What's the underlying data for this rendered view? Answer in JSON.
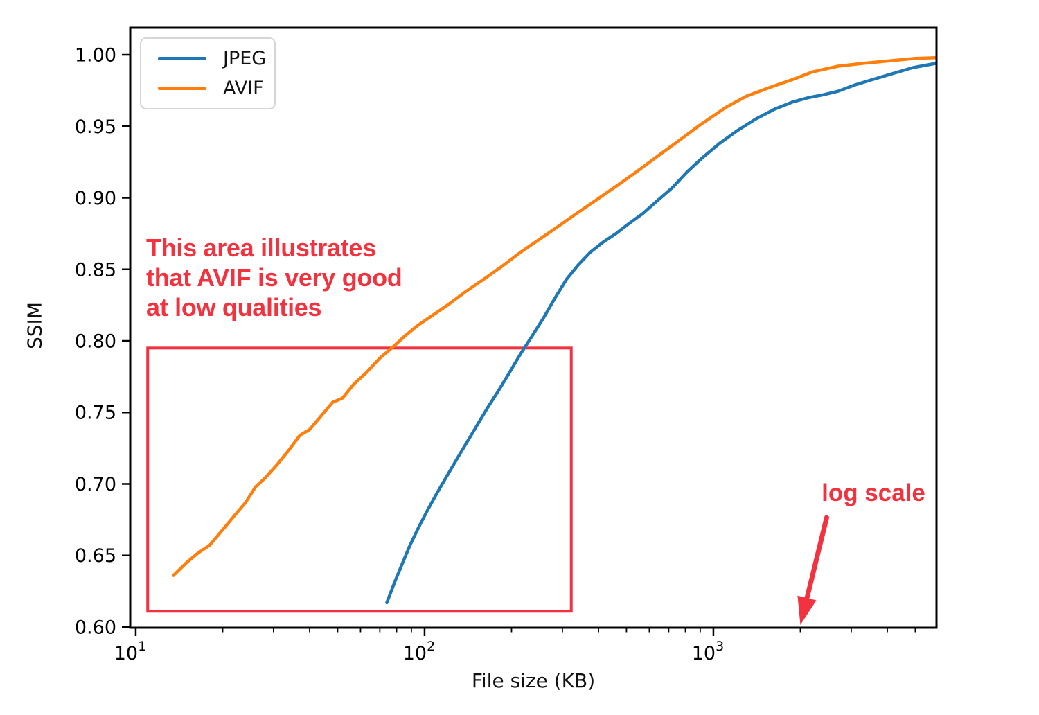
{
  "colors": {
    "jpeg": "#1f77b4",
    "avif": "#ff7f0e",
    "annotation_red": "#f3323f",
    "axis": "#000000",
    "legend_border": "#d5d5d5"
  },
  "chart_data": {
    "type": "line",
    "title": "",
    "xlabel": "File size (KB)",
    "ylabel": "SSIM",
    "x_scale": "log",
    "y_scale": "linear",
    "grid": false,
    "legend_position": "upper left",
    "xlim": [
      9.57,
      5920
    ],
    "ylim": [
      0.5995,
      1.0189
    ],
    "x_major_tick_exponents": [
      1,
      2,
      3
    ],
    "y_ticks": [
      0.6,
      0.65,
      0.7,
      0.75,
      0.8,
      0.85,
      0.9,
      0.95,
      1.0
    ],
    "series": [
      {
        "name": "JPEG",
        "color": "#1f77b4",
        "points": [
          [
            74,
            0.617
          ],
          [
            79,
            0.632
          ],
          [
            84,
            0.645
          ],
          [
            89,
            0.657
          ],
          [
            95,
            0.669
          ],
          [
            102,
            0.681
          ],
          [
            110,
            0.693
          ],
          [
            119,
            0.705
          ],
          [
            129,
            0.717
          ],
          [
            140,
            0.729
          ],
          [
            152,
            0.741
          ],
          [
            165,
            0.753
          ],
          [
            180,
            0.765
          ],
          [
            197,
            0.778
          ],
          [
            215,
            0.791
          ],
          [
            235,
            0.803
          ],
          [
            258,
            0.816
          ],
          [
            283,
            0.83
          ],
          [
            310,
            0.843
          ],
          [
            340,
            0.853
          ],
          [
            375,
            0.862
          ],
          [
            415,
            0.869
          ],
          [
            460,
            0.875
          ],
          [
            510,
            0.882
          ],
          [
            570,
            0.889
          ],
          [
            640,
            0.898
          ],
          [
            720,
            0.907
          ],
          [
            810,
            0.918
          ],
          [
            915,
            0.928
          ],
          [
            1050,
            0.938
          ],
          [
            1210,
            0.947
          ],
          [
            1400,
            0.955
          ],
          [
            1630,
            0.962
          ],
          [
            1880,
            0.967
          ],
          [
            2130,
            0.97
          ],
          [
            2400,
            0.972
          ],
          [
            2700,
            0.9745
          ],
          [
            3100,
            0.979
          ],
          [
            3600,
            0.983
          ],
          [
            4200,
            0.987
          ],
          [
            4900,
            0.991
          ],
          [
            5900,
            0.994
          ]
        ]
      },
      {
        "name": "AVIF",
        "color": "#ff7f0e",
        "points": [
          [
            13.5,
            0.636
          ],
          [
            15,
            0.645
          ],
          [
            16.5,
            0.652
          ],
          [
            18,
            0.657
          ],
          [
            20,
            0.668
          ],
          [
            22,
            0.678
          ],
          [
            24,
            0.687
          ],
          [
            26,
            0.698
          ],
          [
            28,
            0.704
          ],
          [
            31,
            0.714
          ],
          [
            34,
            0.724
          ],
          [
            37,
            0.734
          ],
          [
            40,
            0.738
          ],
          [
            44,
            0.748
          ],
          [
            48,
            0.757
          ],
          [
            52,
            0.76
          ],
          [
            57,
            0.77
          ],
          [
            63,
            0.778
          ],
          [
            70,
            0.788
          ],
          [
            77,
            0.795
          ],
          [
            85,
            0.803
          ],
          [
            95,
            0.811
          ],
          [
            105,
            0.817
          ],
          [
            120,
            0.825
          ],
          [
            140,
            0.835
          ],
          [
            160,
            0.843
          ],
          [
            185,
            0.852
          ],
          [
            215,
            0.862
          ],
          [
            250,
            0.871
          ],
          [
            290,
            0.88
          ],
          [
            330,
            0.888
          ],
          [
            390,
            0.898
          ],
          [
            460,
            0.908
          ],
          [
            540,
            0.918
          ],
          [
            640,
            0.929
          ],
          [
            760,
            0.94
          ],
          [
            900,
            0.951
          ],
          [
            1100,
            0.963
          ],
          [
            1300,
            0.971
          ],
          [
            1560,
            0.977
          ],
          [
            1900,
            0.983
          ],
          [
            2200,
            0.988
          ],
          [
            2700,
            0.992
          ],
          [
            3300,
            0.994
          ],
          [
            4200,
            0.996
          ],
          [
            5000,
            0.9975
          ],
          [
            5900,
            0.998
          ]
        ]
      }
    ],
    "annotations": {
      "box": {
        "x0_kb": 11,
        "x1_kb": 322,
        "y0": 0.611,
        "y1": 0.795,
        "color": "#f3323f"
      },
      "note": {
        "lines": [
          "This area illustrates",
          "that AVIF is very good",
          "at low qualities"
        ],
        "color": "#f3323f"
      },
      "arrow": {
        "label": "log scale",
        "points_to_kb": 2000,
        "color": "#f3323f"
      }
    }
  },
  "legend": {
    "items": [
      {
        "label": "JPEG",
        "color": "#1f77b4"
      },
      {
        "label": "AVIF",
        "color": "#ff7f0e"
      }
    ]
  }
}
